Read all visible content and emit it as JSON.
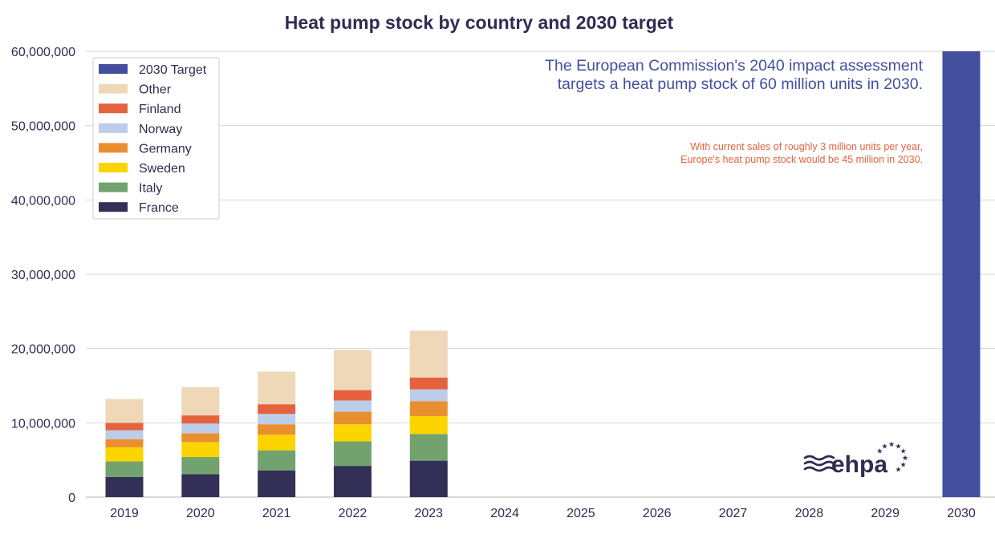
{
  "chart_data": {
    "type": "bar",
    "stacked": true,
    "title": "Heat pump stock by country and 2030 target",
    "xlabel": "",
    "ylabel": "",
    "ylim": [
      0,
      60000000
    ],
    "grid": true,
    "legend_position": "top-left",
    "categories": [
      "2019",
      "2020",
      "2021",
      "2022",
      "2023",
      "2024",
      "2025",
      "2026",
      "2027",
      "2028",
      "2029",
      "2030"
    ],
    "yticks": [
      0,
      10000000,
      20000000,
      30000000,
      40000000,
      50000000,
      60000000
    ],
    "ytick_labels": [
      "0",
      "10,000,000",
      "20,000,000",
      "30,000,000",
      "40,000,000",
      "50,000,000",
      "60,000,000"
    ],
    "series": [
      {
        "name": "France",
        "color": "#342f57",
        "values": [
          2700000,
          3100000,
          3600000,
          4200000,
          4900000,
          null,
          null,
          null,
          null,
          null,
          null,
          null
        ]
      },
      {
        "name": "Italy",
        "color": "#72a36e",
        "values": [
          2100000,
          2300000,
          2700000,
          3300000,
          3600000,
          null,
          null,
          null,
          null,
          null,
          null,
          null
        ]
      },
      {
        "name": "Sweden",
        "color": "#fcd400",
        "values": [
          1900000,
          2000000,
          2100000,
          2300000,
          2400000,
          null,
          null,
          null,
          null,
          null,
          null,
          null
        ]
      },
      {
        "name": "Germany",
        "color": "#ea8f2f",
        "values": [
          1100000,
          1200000,
          1400000,
          1700000,
          2000000,
          null,
          null,
          null,
          null,
          null,
          null,
          null
        ]
      },
      {
        "name": "Norway",
        "color": "#bccde9",
        "values": [
          1200000,
          1300000,
          1400000,
          1500000,
          1600000,
          null,
          null,
          null,
          null,
          null,
          null,
          null
        ]
      },
      {
        "name": "Finland",
        "color": "#e4633e",
        "values": [
          1000000,
          1100000,
          1300000,
          1400000,
          1600000,
          null,
          null,
          null,
          null,
          null,
          null,
          null
        ]
      },
      {
        "name": "Other",
        "color": "#efd8b8",
        "values": [
          3200000,
          3800000,
          4400000,
          5400000,
          6300000,
          null,
          null,
          null,
          null,
          null,
          null,
          null
        ]
      },
      {
        "name": "2030 Target",
        "color": "#434f9e",
        "values": [
          null,
          null,
          null,
          null,
          null,
          null,
          null,
          null,
          null,
          null,
          null,
          60000000
        ]
      }
    ],
    "legend_order": [
      "2030 Target",
      "Other",
      "Finland",
      "Norway",
      "Germany",
      "Sweden",
      "Italy",
      "France"
    ],
    "annotations": [
      {
        "text": "The European Commission's 2040 impact assessment",
        "color": "#434f9e"
      },
      {
        "text": "targets a heat pump stock of 60 million units in 2030.",
        "color": "#434f9e"
      },
      {
        "text": "With current sales of roughly 3 million units per year,",
        "color": "#e4633e"
      },
      {
        "text": "Europe's heat pump stock would be 45 million in 2030.",
        "color": "#e4633e"
      }
    ],
    "colors": {
      "text": "#2f2c52",
      "grid": "#d4d4d8",
      "logo": "#2f2c52"
    }
  },
  "logo": {
    "text": "ehpa",
    "icon": "wave-stars-logo"
  }
}
